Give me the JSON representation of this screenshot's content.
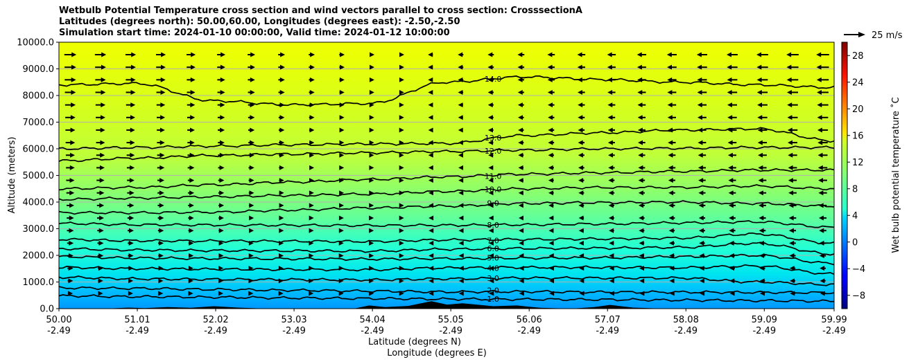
{
  "chart_data": {
    "type": "contour",
    "title_lines": [
      "Wetbulb Potential Temperature cross section and wind vectors parallel to cross section: CrosssectionA",
      "Latitudes (degrees north): 50.00,60.00, Longitudes (degrees east): -2.50,-2.50",
      "Simulation start time: 2024-01-10 00:00:00, Valid time: 2024-01-12 10:00:00"
    ],
    "xlabel_lines": [
      "Latitude (degrees N)",
      "Longitude (degrees E)"
    ],
    "ylabel": "Altitude (meters)",
    "x_ticks": [
      {
        "lat": 50.0,
        "lat_label": "50.00",
        "lon_label": "-2.49"
      },
      {
        "lat": 51.01,
        "lat_label": "51.01",
        "lon_label": "-2.49"
      },
      {
        "lat": 52.02,
        "lat_label": "52.02",
        "lon_label": "-2.49"
      },
      {
        "lat": 53.03,
        "lat_label": "53.03",
        "lon_label": "-2.49"
      },
      {
        "lat": 54.04,
        "lat_label": "54.04",
        "lon_label": "-2.49"
      },
      {
        "lat": 55.05,
        "lat_label": "55.05",
        "lon_label": "-2.49"
      },
      {
        "lat": 56.06,
        "lat_label": "56.06",
        "lon_label": "-2.49"
      },
      {
        "lat": 57.07,
        "lat_label": "57.07",
        "lon_label": "-2.49"
      },
      {
        "lat": 58.08,
        "lat_label": "58.08",
        "lon_label": "-2.49"
      },
      {
        "lat": 59.09,
        "lat_label": "59.09",
        "lon_label": "-2.49"
      },
      {
        "lat": 59.99,
        "lat_label": "59.99",
        "lon_label": "-2.49"
      }
    ],
    "xlim": [
      50.0,
      59.99
    ],
    "y_ticks": [
      "0.0",
      "1000.0",
      "2000.0",
      "3000.0",
      "4000.0",
      "5000.0",
      "6000.0",
      "7000.0",
      "8000.0",
      "9000.0",
      "10000.0"
    ],
    "ylim": [
      0,
      10000
    ],
    "grid": "horizontal",
    "colorbar": {
      "label": "Wet bulb potential temperature ˚C",
      "colormap": "jet",
      "range": [
        -10,
        30
      ],
      "ticks": [
        "−8",
        "−4",
        "0",
        "4",
        "8",
        "12",
        "16",
        "20",
        "24",
        "28"
      ],
      "tick_values": [
        -8,
        -4,
        0,
        4,
        8,
        12,
        16,
        20,
        24,
        28
      ]
    },
    "wind_key": {
      "label": "25 m/s",
      "speed": 25
    },
    "contours": [
      {
        "level": 1.0,
        "label": "1.0",
        "heights": [
          480,
          450,
          430,
          400,
          380,
          360,
          350,
          340,
          320,
          300,
          280
        ]
      },
      {
        "level": 2.0,
        "label": "2.0",
        "heights": [
          780,
          760,
          720,
          690,
          660,
          630,
          640,
          620,
          620,
          610,
          600
        ]
      },
      {
        "level": 3.0,
        "label": "3.0",
        "heights": [
          1180,
          1120,
          1100,
          1090,
          1080,
          1120,
          1150,
          1150,
          1150,
          1000,
          900
        ]
      },
      {
        "level": 4.0,
        "label": "4.0",
        "heights": [
          1550,
          1500,
          1480,
          1470,
          1460,
          1530,
          1550,
          1550,
          1540,
          1600,
          1300
        ]
      },
      {
        "level": 5.0,
        "label": "5.0",
        "heights": [
          1950,
          1900,
          1880,
          1870,
          1860,
          1880,
          1900,
          1910,
          1950,
          2000,
          1700
        ]
      },
      {
        "level": 6.0,
        "label": "6.0",
        "heights": [
          2250,
          2200,
          2180,
          2170,
          2160,
          2230,
          2260,
          2270,
          2300,
          2450,
          2050
        ]
      },
      {
        "level": 7.0,
        "label": "7.0",
        "heights": [
          2600,
          2550,
          2540,
          2530,
          2520,
          2580,
          2600,
          2620,
          2650,
          2800,
          2450
        ]
      },
      {
        "level": 8.0,
        "label": "8.0",
        "heights": [
          3200,
          3150,
          3140,
          3130,
          3120,
          3130,
          3150,
          3180,
          3220,
          3260,
          3050
        ]
      },
      {
        "level": 9.0,
        "label": "9.0",
        "heights": [
          3600,
          3600,
          3620,
          3700,
          3780,
          3850,
          3950,
          3980,
          4000,
          3950,
          3850
        ]
      },
      {
        "level": 10.0,
        "label": "10.0",
        "heights": [
          4100,
          4150,
          4200,
          4250,
          4300,
          4400,
          4500,
          4550,
          4550,
          4600,
          4500
        ]
      },
      {
        "level": 11.0,
        "label": "11.0",
        "heights": [
          4500,
          4550,
          4650,
          4750,
          4850,
          4950,
          5050,
          5100,
          5150,
          5200,
          5200
        ]
      },
      {
        "level": 12.0,
        "label": "12.0",
        "heights": [
          5550,
          5650,
          5750,
          5800,
          5850,
          5900,
          5950,
          6000,
          6020,
          6050,
          6050
        ]
      },
      {
        "level": 13.0,
        "label": "13.0",
        "heights": [
          6000,
          6050,
          6100,
          6150,
          6180,
          6200,
          6500,
          6600,
          6700,
          6750,
          6300
        ]
      },
      {
        "level": 14.0,
        "label": "14.0",
        "heights": [
          8400,
          8450,
          7800,
          7650,
          7700,
          8500,
          8700,
          8600,
          8500,
          8400,
          8300
        ]
      }
    ]
  }
}
